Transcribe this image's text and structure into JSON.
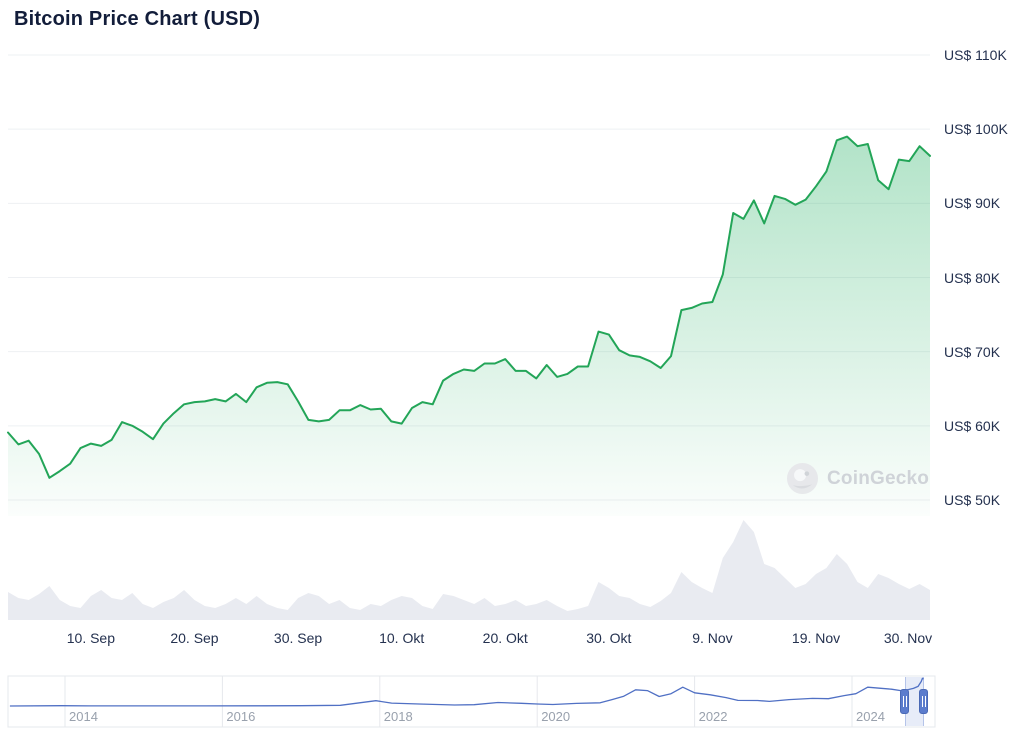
{
  "page": {
    "title": "Bitcoin Price Chart (USD)"
  },
  "watermark": {
    "label": "CoinGecko"
  },
  "colors": {
    "price_line": "#23a558",
    "price_fill_top": "rgba(52,182,110,0.38)",
    "price_fill_bottom": "rgba(52,182,110,0.02)",
    "volume_fill": "#e9ebf1",
    "navigator_line": "#5070c4",
    "gridline": "#eef0f3",
    "nav_gridline": "#e6e8ec"
  },
  "chart_data": [
    {
      "type": "area",
      "name": "bitcoin-price-usd",
      "title": "Bitcoin Price Chart (USD)",
      "x_start_date": "2024-09-02",
      "x_frequency": "daily",
      "unit": "thousand USD",
      "ylim": [
        50,
        110
      ],
      "grid": true,
      "legend": "none",
      "yticks": [
        {
          "value": 110,
          "label": "US$ 110K"
        },
        {
          "value": 100,
          "label": "US$ 100K"
        },
        {
          "value": 90,
          "label": "US$ 90K"
        },
        {
          "value": 80,
          "label": "US$ 80K"
        },
        {
          "value": 70,
          "label": "US$ 70K"
        },
        {
          "value": 60,
          "label": "US$ 60K"
        },
        {
          "value": 50,
          "label": "US$ 50K"
        }
      ],
      "xticks": [
        {
          "day": 8,
          "label": "10. Sep"
        },
        {
          "day": 18,
          "label": "20. Sep"
        },
        {
          "day": 28,
          "label": "30. Sep"
        },
        {
          "day": 38,
          "label": "10. Okt"
        },
        {
          "day": 48,
          "label": "20. Okt"
        },
        {
          "day": 58,
          "label": "30. Okt"
        },
        {
          "day": 68,
          "label": "9. Nov"
        },
        {
          "day": 78,
          "label": "19. Nov"
        },
        {
          "day": 89,
          "label": "30. Nov"
        }
      ],
      "values": [
        59.1,
        57.5,
        58.0,
        56.2,
        53.0,
        53.9,
        54.9,
        57.0,
        57.6,
        57.3,
        58.1,
        60.5,
        60.0,
        59.2,
        58.2,
        60.3,
        61.7,
        62.9,
        63.2,
        63.3,
        63.6,
        63.3,
        64.3,
        63.2,
        65.2,
        65.8,
        65.9,
        65.6,
        63.3,
        60.8,
        60.6,
        60.8,
        62.1,
        62.1,
        62.8,
        62.2,
        62.3,
        60.6,
        60.3,
        62.4,
        63.2,
        62.9,
        66.1,
        67.0,
        67.6,
        67.4,
        68.4,
        68.4,
        69.0,
        67.4,
        67.4,
        66.4,
        68.2,
        66.6,
        67.0,
        68.0,
        68.0,
        72.7,
        72.3,
        70.2,
        69.5,
        69.3,
        68.7,
        67.8,
        69.4,
        75.6,
        75.9,
        76.5,
        76.7,
        80.4,
        88.7,
        87.9,
        90.4,
        87.3,
        91.0,
        90.6,
        89.8,
        90.5,
        92.3,
        94.3,
        98.5,
        99.0,
        97.7,
        98.0,
        93.1,
        91.9,
        95.9,
        95.7,
        97.7,
        96.4
      ]
    },
    {
      "type": "area",
      "name": "volume",
      "unit": "relative 0-100",
      "values": [
        28,
        22,
        20,
        26,
        34,
        20,
        14,
        12,
        24,
        30,
        22,
        20,
        27,
        16,
        12,
        18,
        22,
        30,
        20,
        14,
        12,
        16,
        22,
        16,
        24,
        16,
        12,
        10,
        22,
        27,
        24,
        16,
        20,
        12,
        10,
        16,
        14,
        20,
        24,
        22,
        14,
        11,
        26,
        24,
        20,
        16,
        22,
        14,
        16,
        20,
        14,
        16,
        20,
        14,
        9,
        11,
        14,
        38,
        32,
        24,
        22,
        16,
        13,
        19,
        27,
        48,
        38,
        32,
        27,
        62,
        78,
        100,
        88,
        56,
        52,
        42,
        32,
        36,
        46,
        52,
        66,
        56,
        38,
        32,
        46,
        42,
        36,
        31,
        36,
        30
      ]
    },
    {
      "type": "line",
      "name": "history-navigator",
      "unit": "x: year, y: thousand USD",
      "selection_years": [
        2024.67,
        2024.91
      ],
      "year_ticks": [
        {
          "value": 2014,
          "label": "2014"
        },
        {
          "value": 2016,
          "label": "2016"
        },
        {
          "value": 2018,
          "label": "2018"
        },
        {
          "value": 2020,
          "label": "2020"
        },
        {
          "value": 2022,
          "label": "2022"
        },
        {
          "value": 2024,
          "label": "2024"
        }
      ],
      "points": [
        [
          2013.3,
          0.1
        ],
        [
          2013.95,
          0.9
        ],
        [
          2014.3,
          0.5
        ],
        [
          2015.0,
          0.25
        ],
        [
          2015.8,
          0.35
        ],
        [
          2016.5,
          0.6
        ],
        [
          2017.0,
          1.0
        ],
        [
          2017.5,
          2.5
        ],
        [
          2017.95,
          19.0
        ],
        [
          2018.15,
          10.5
        ],
        [
          2018.5,
          7.0
        ],
        [
          2018.95,
          3.7
        ],
        [
          2019.2,
          4.5
        ],
        [
          2019.5,
          12.5
        ],
        [
          2019.8,
          9.5
        ],
        [
          2020.0,
          7.2
        ],
        [
          2020.2,
          5.5
        ],
        [
          2020.5,
          9.2
        ],
        [
          2020.8,
          11.5
        ],
        [
          2020.95,
          23.0
        ],
        [
          2021.1,
          35.0
        ],
        [
          2021.25,
          58.0
        ],
        [
          2021.4,
          55.0
        ],
        [
          2021.55,
          34.0
        ],
        [
          2021.7,
          44.0
        ],
        [
          2021.85,
          67.0
        ],
        [
          2022.0,
          47.0
        ],
        [
          2022.2,
          40.0
        ],
        [
          2022.4,
          30.0
        ],
        [
          2022.55,
          20.0
        ],
        [
          2022.8,
          19.5
        ],
        [
          2022.95,
          16.5
        ],
        [
          2023.2,
          23.0
        ],
        [
          2023.5,
          27.0
        ],
        [
          2023.7,
          26.0
        ],
        [
          2023.9,
          37.0
        ],
        [
          2024.05,
          44.0
        ],
        [
          2024.2,
          67.0
        ],
        [
          2024.35,
          63.5
        ],
        [
          2024.5,
          60.0
        ],
        [
          2024.62,
          55.0
        ],
        [
          2024.7,
          57.5
        ],
        [
          2024.78,
          63.0
        ],
        [
          2024.84,
          70.0
        ],
        [
          2024.88,
          88.0
        ],
        [
          2024.895,
          99.0
        ],
        [
          2024.91,
          96.4
        ]
      ]
    }
  ]
}
